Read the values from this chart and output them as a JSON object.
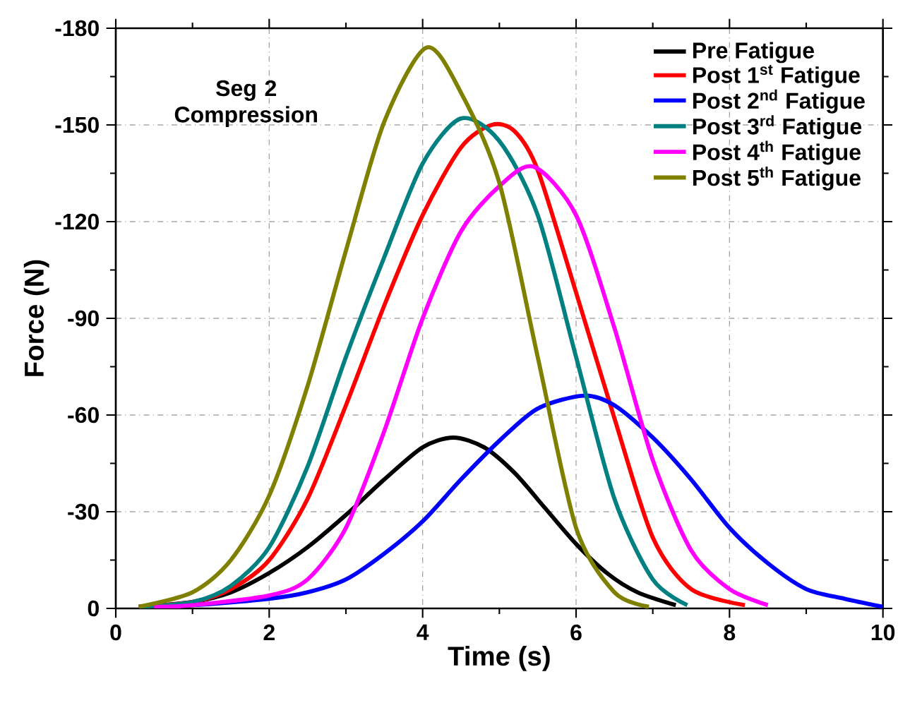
{
  "chart_data": {
    "type": "line",
    "xlabel": "Time (s)",
    "ylabel": "Force (N)",
    "xlim": [
      0,
      10
    ],
    "ylim": [
      0,
      -180
    ],
    "xticks": [
      0,
      2,
      4,
      6,
      8,
      10
    ],
    "yticks": [
      0,
      -30,
      -60,
      -90,
      -120,
      -150,
      -180
    ],
    "grid": true,
    "legend": "top right",
    "marker": "none",
    "line_style": "solid",
    "annotations": [
      "**Seg 2 Compression**"
    ],
    "series": [
      {
        "name": "Pre Fatigue",
        "color": "#000000",
        "x": [
          0.3,
          1,
          1.5,
          2,
          2.5,
          3,
          3.5,
          4,
          4.4,
          4.8,
          5.2,
          5.6,
          6,
          6.4,
          6.8,
          7.3
        ],
        "values": [
          -0.5,
          -2,
          -5,
          -11,
          -19,
          -29,
          -40,
          -50,
          -53,
          -50,
          -42,
          -31,
          -20,
          -11,
          -5,
          -1
        ]
      },
      {
        "name": "Post 1$^{st}$ Fatigue",
        "color": "#ff0000",
        "x": [
          0.3,
          1,
          1.5,
          2,
          2.5,
          3,
          3.5,
          4,
          4.5,
          4.9,
          5.2,
          5.5,
          6,
          6.5,
          7,
          7.5,
          8.2
        ],
        "values": [
          -0.5,
          -2,
          -6,
          -15,
          -34,
          -63,
          -94,
          -122,
          -143,
          -150,
          -148,
          -136,
          -98,
          -59,
          -22,
          -6,
          -1
        ]
      },
      {
        "name": "Post 2$^{nd}$ Fatigue",
        "color": "#0000ff",
        "x": [
          0.5,
          1,
          2,
          2.5,
          3,
          3.5,
          4,
          4.5,
          5,
          5.5,
          6.1,
          6.5,
          7,
          7.5,
          8,
          8.5,
          9,
          9.5,
          10
        ],
        "values": [
          -0.5,
          -1,
          -3,
          -5,
          -9,
          -17,
          -27,
          -40,
          -52,
          -62,
          -66,
          -63,
          -53,
          -40,
          -25,
          -14,
          -6,
          -3,
          -0.5
        ]
      },
      {
        "name": "Post 3$^{rd}$ Fatigue",
        "color": "#008080",
        "x": [
          0.3,
          1,
          1.5,
          2,
          2.5,
          3,
          3.5,
          4,
          4.5,
          5,
          5.5,
          6,
          6.5,
          7,
          7.45
        ],
        "values": [
          -0.5,
          -2,
          -7,
          -19,
          -44,
          -78,
          -109,
          -138,
          -152,
          -145,
          -122,
          -78,
          -34,
          -9,
          -1
        ]
      },
      {
        "name": "Post 4$^{th}$ Fatigue",
        "color": "#ff00ff",
        "x": [
          0.5,
          1,
          2,
          2.5,
          3,
          3.5,
          4,
          4.5,
          5,
          5.45,
          6,
          6.5,
          7,
          7.5,
          8,
          8.5
        ],
        "values": [
          -0.5,
          -1,
          -4,
          -9,
          -25,
          -55,
          -90,
          -117,
          -131,
          -137,
          -122,
          -87,
          -46,
          -18,
          -6,
          -1
        ]
      },
      {
        "name": "Post 5$^{th}$ Fatigue",
        "color": "#808000",
        "x": [
          0.3,
          1,
          1.5,
          2,
          2.5,
          3,
          3.5,
          4.05,
          4.5,
          5,
          5.5,
          6,
          6.5,
          6.95
        ],
        "values": [
          -0.5,
          -5,
          -15,
          -35,
          -69,
          -111,
          -151,
          -174,
          -160,
          -132,
          -78,
          -25,
          -5,
          -0.5
        ]
      }
    ]
  }
}
